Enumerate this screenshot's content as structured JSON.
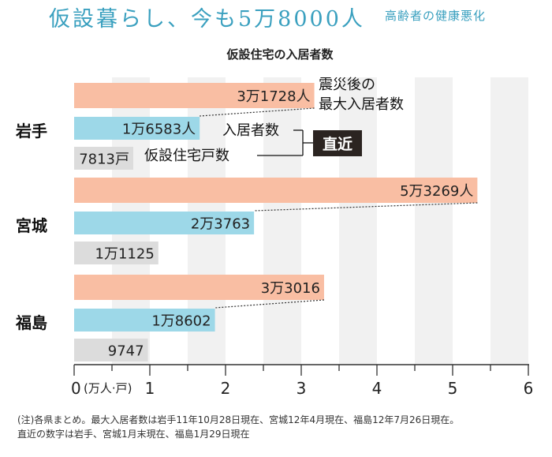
{
  "header": {
    "headline": "仮設暮らし、今も5万8000人",
    "subhead": "高齢者の健康悪化"
  },
  "chart_data": {
    "type": "bar",
    "title": "仮設住宅の入居者数",
    "x_unit_label": "(万人·戸)",
    "xlim": [
      0,
      6
    ],
    "x_ticks": [
      0,
      1,
      2,
      3,
      4,
      5,
      6
    ],
    "orientation": "horizontal",
    "categories": [
      "岩手",
      "宮城",
      "福島"
    ],
    "series": [
      {
        "key": "max",
        "name": "震災後の最大入居者数",
        "name_lines": [
          "震災後の",
          "最大入居者数"
        ],
        "color": "#f9bea3",
        "values": [
          3.1728,
          5.3269,
          3.3016
        ],
        "labels": [
          "3万1728人",
          "5万3269人",
          "3万3016"
        ]
      },
      {
        "key": "current",
        "name": "入居者数",
        "color": "#9dd8e8",
        "values": [
          1.6583,
          2.3763,
          1.8602
        ],
        "labels": [
          "1万6583人",
          "2万3763",
          "1万8602"
        ]
      },
      {
        "key": "units",
        "name": "仮設住宅戸数",
        "color": "#dcdcdc",
        "values": [
          0.7813,
          1.1125,
          0.9747
        ],
        "labels": [
          "7813戸",
          "1万1125",
          "9747"
        ]
      }
    ],
    "bracket_label": "直近"
  },
  "notes": [
    "(注)各県まとめ。最大入居者数は岩手11年10月28日現在、宮城12年4月現在、福島12年7月26日現在。",
    "直近の数字は岩手、宮城1月末現在、福島1月29日現在"
  ]
}
